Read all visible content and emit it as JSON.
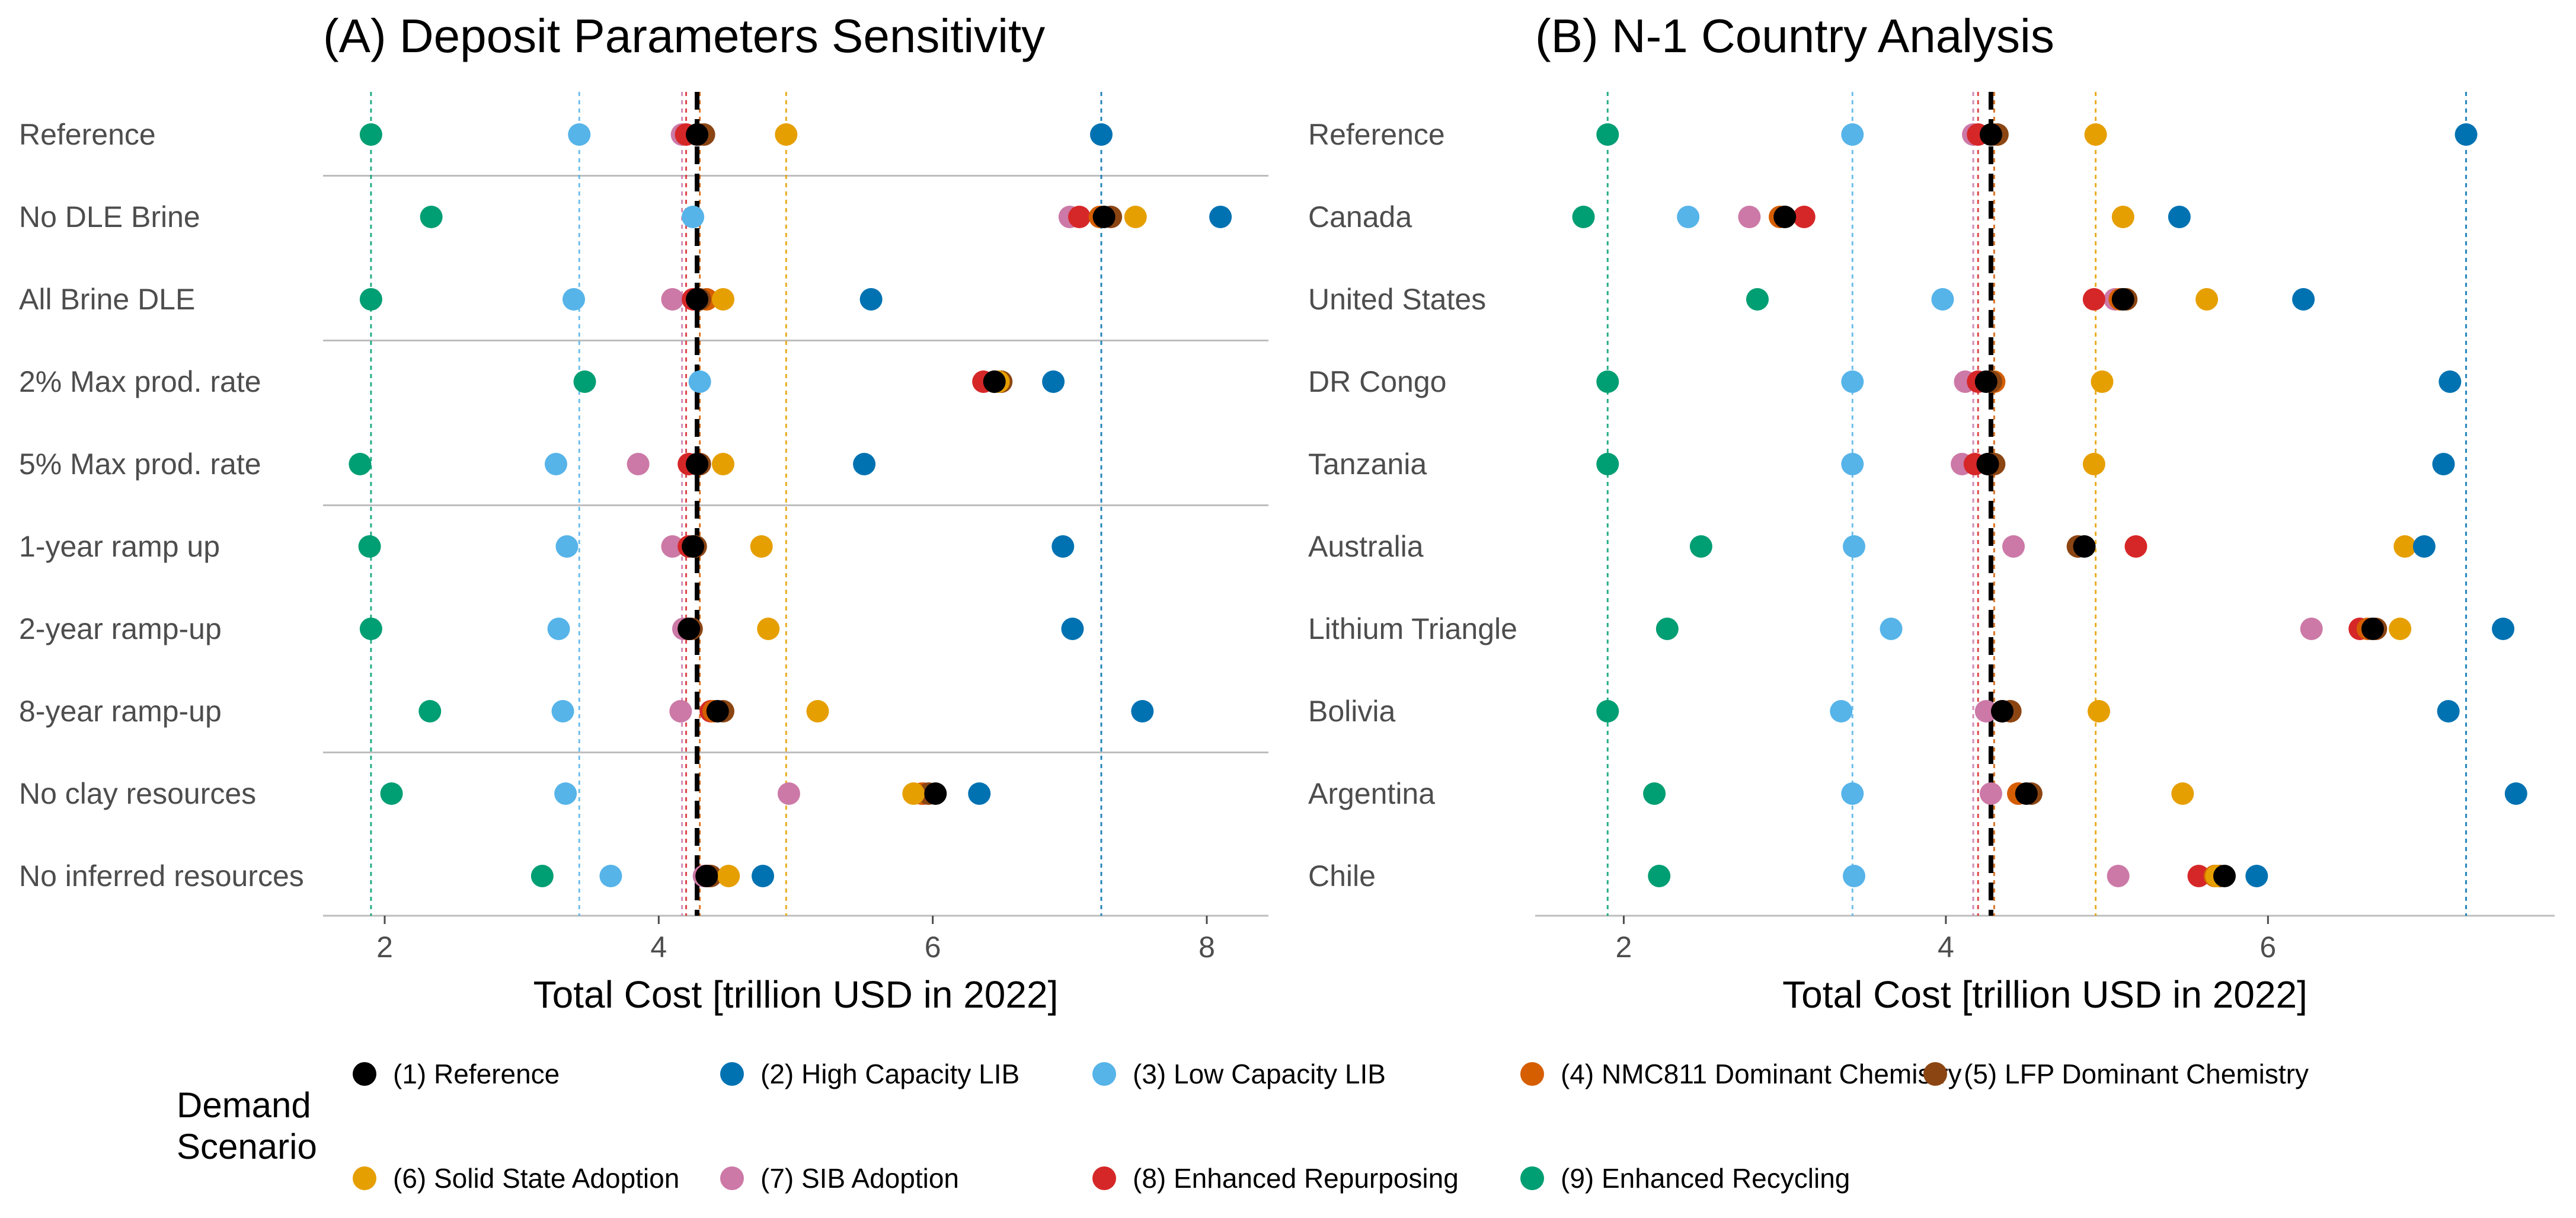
{
  "chart_data": [
    {
      "type": "scatter",
      "title": "(A) Deposit Parameters Sensitivity",
      "xlabel": "Total Cost [trillion USD in 2022]",
      "ylabel": "",
      "xlim": [
        1.55,
        8.45
      ],
      "xticks": [
        "2",
        "4",
        "6",
        "8"
      ],
      "xtick_values": [
        2,
        4,
        6,
        8
      ],
      "grid": false,
      "group_separators_after_rows": [
        1,
        3,
        5,
        8
      ],
      "categories": [
        "Reference",
        "No DLE Brine",
        "All Brine DLE",
        "2% Max prod. rate",
        "5% Max prod. rate",
        "1-year ramp up",
        "2-year ramp-up",
        "8-year ramp-up",
        "No clay resources",
        "No inferred resources"
      ],
      "reference_lines": [
        {
          "scenario": "(9) Enhanced Recycling",
          "value": 1.9
        },
        {
          "scenario": "(3) Low Capacity LIB",
          "value": 3.42
        },
        {
          "scenario": "(7) SIB Adoption",
          "value": 4.17
        },
        {
          "scenario": "(8) Enhanced Repurposing",
          "value": 4.2
        },
        {
          "scenario": "(4) NMC811 Dominant Chemistry",
          "value": 4.3
        },
        {
          "scenario": "(6) Solid State Adoption",
          "value": 4.93
        },
        {
          "scenario": "(2) High Capacity LIB",
          "value": 7.23
        },
        {
          "scenario": "(1) Reference",
          "value": 4.28,
          "style": "dashed-bold"
        }
      ],
      "series": [
        {
          "name": "(1) Reference",
          "values": [
            4.28,
            7.25,
            4.28,
            6.45,
            4.28,
            4.25,
            4.22,
            4.43,
            6.02,
            4.35
          ]
        },
        {
          "name": "(2) High Capacity LIB",
          "values": [
            7.23,
            8.1,
            5.55,
            6.88,
            5.5,
            6.95,
            7.02,
            7.53,
            6.34,
            4.76
          ]
        },
        {
          "name": "(3) Low Capacity LIB",
          "values": [
            3.42,
            4.25,
            3.38,
            4.3,
            3.25,
            3.33,
            3.27,
            3.3,
            3.32,
            3.65
          ]
        },
        {
          "name": "(4) NMC811 Dominant Chemistry",
          "values": [
            4.3,
            7.22,
            4.35,
            6.45,
            4.3,
            4.25,
            4.22,
            4.4,
            5.92,
            4.35
          ]
        },
        {
          "name": "(5) LFP Dominant Chemistry",
          "values": [
            4.33,
            7.3,
            4.3,
            6.5,
            4.3,
            4.27,
            4.24,
            4.47,
            5.97,
            4.38
          ]
        },
        {
          "name": "(6) Solid State Adoption",
          "values": [
            4.93,
            7.48,
            4.47,
            6.48,
            4.47,
            4.75,
            4.8,
            5.16,
            5.86,
            4.51
          ]
        },
        {
          "name": "(7) SIB Adoption",
          "values": [
            4.17,
            7.0,
            4.1,
            6.45,
            3.85,
            4.1,
            4.18,
            4.16,
            4.95,
            4.33
          ]
        },
        {
          "name": "(8) Enhanced Repurposing",
          "values": [
            4.2,
            7.07,
            4.25,
            6.37,
            4.22,
            4.22,
            4.22,
            4.38,
            5.93,
            4.37
          ]
        },
        {
          "name": "(9) Enhanced Recycling",
          "values": [
            1.9,
            2.34,
            1.9,
            3.46,
            1.82,
            1.89,
            1.9,
            2.33,
            2.05,
            3.15
          ]
        }
      ]
    },
    {
      "type": "scatter",
      "title": "(B) N-1 Country Analysis",
      "xlabel": "Total Cost [trillion USD in 2022]",
      "ylabel": "",
      "xlim": [
        1.45,
        7.78
      ],
      "xticks": [
        "2",
        "4",
        "6"
      ],
      "xtick_values": [
        2,
        4,
        6
      ],
      "grid": false,
      "group_separators_after_rows": [],
      "categories": [
        "Reference",
        "Canada",
        "United States",
        "DR Congo",
        "Tanzania",
        "Australia",
        "Lithium Triangle",
        "Bolivia",
        "Argentina",
        "Chile"
      ],
      "reference_lines": [
        {
          "scenario": "(9) Enhanced Recycling",
          "value": 1.9
        },
        {
          "scenario": "(3) Low Capacity LIB",
          "value": 3.42
        },
        {
          "scenario": "(7) SIB Adoption",
          "value": 4.17
        },
        {
          "scenario": "(8) Enhanced Repurposing",
          "value": 4.2
        },
        {
          "scenario": "(4) NMC811 Dominant Chemistry",
          "value": 4.3
        },
        {
          "scenario": "(6) Solid State Adoption",
          "value": 4.93
        },
        {
          "scenario": "(2) High Capacity LIB",
          "value": 7.23
        },
        {
          "scenario": "(1) Reference",
          "value": 4.28,
          "style": "dashed-bold"
        }
      ],
      "series": [
        {
          "name": "(1) Reference",
          "values": [
            4.28,
            3.0,
            5.1,
            4.25,
            4.26,
            4.86,
            6.65,
            4.35,
            4.5,
            5.73
          ]
        },
        {
          "name": "(2) High Capacity LIB",
          "values": [
            7.23,
            5.45,
            6.22,
            7.13,
            7.09,
            6.97,
            7.46,
            7.12,
            7.54,
            5.93
          ]
        },
        {
          "name": "(3) Low Capacity LIB",
          "values": [
            3.42,
            2.4,
            3.98,
            3.42,
            3.42,
            3.43,
            3.66,
            3.35,
            3.42,
            3.43
          ]
        },
        {
          "name": "(4) NMC811 Dominant Chemistry",
          "values": [
            4.3,
            2.97,
            5.08,
            4.3,
            4.28,
            4.82,
            6.62,
            4.4,
            4.45,
            5.67
          ]
        },
        {
          "name": "(5) LFP Dominant Chemistry",
          "values": [
            4.32,
            3.0,
            5.12,
            4.28,
            4.3,
            4.82,
            6.67,
            4.4,
            4.53,
            5.7
          ]
        },
        {
          "name": "(6) Solid State Adoption",
          "values": [
            4.93,
            5.1,
            5.62,
            4.97,
            4.92,
            6.85,
            6.82,
            4.95,
            5.47,
            5.68
          ]
        },
        {
          "name": "(7) SIB Adoption",
          "values": [
            4.17,
            2.78,
            5.05,
            4.12,
            4.1,
            4.42,
            6.27,
            4.25,
            4.28,
            5.07
          ]
        },
        {
          "name": "(8) Enhanced Repurposing",
          "values": [
            4.2,
            3.12,
            4.92,
            4.2,
            4.18,
            5.18,
            6.57,
            4.35,
            4.45,
            5.57
          ]
        },
        {
          "name": "(9) Enhanced Recycling",
          "values": [
            1.9,
            1.75,
            2.83,
            1.9,
            1.9,
            2.48,
            2.27,
            1.9,
            2.19,
            2.22
          ]
        }
      ]
    }
  ],
  "colors": {
    "(1) Reference": "#000000",
    "(2) High Capacity LIB": "#0072b2",
    "(3) Low Capacity LIB": "#56b4e9",
    "(4) NMC811 Dominant Chemistry": "#d55e00",
    "(5) LFP Dominant Chemistry": "#8b4513",
    "(6) Solid State Adoption": "#e69f00",
    "(7) SIB Adoption": "#cc79a7",
    "(8) Enhanced Repurposing": "#d62728",
    "(9) Enhanced Recycling": "#009e73"
  },
  "legend": {
    "title_line1": "Demand",
    "title_line2": "Scenario",
    "placement": "bottom",
    "items": [
      "(1) Reference",
      "(2) High Capacity LIB",
      "(3) Low Capacity LIB",
      "(4) NMC811 Dominant Chemistry",
      "(5) LFP Dominant Chemistry",
      "(6) Solid State Adoption",
      "(7) SIB Adoption",
      "(8) Enhanced Repurposing",
      "(9) Enhanced Recycling"
    ]
  }
}
